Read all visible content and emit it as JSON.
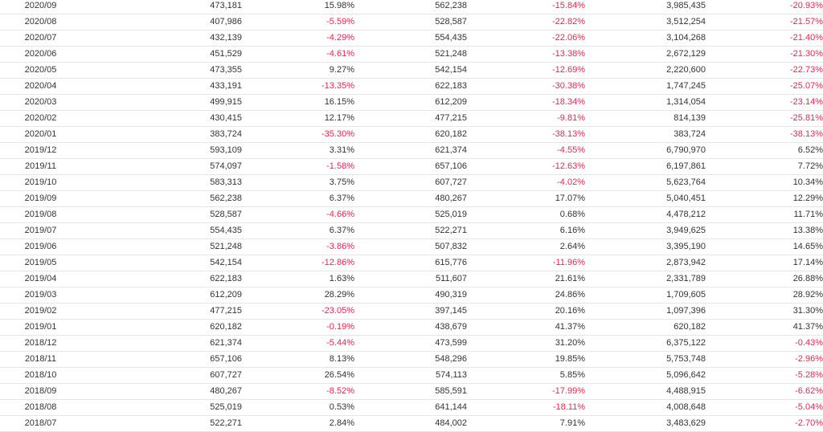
{
  "colors": {
    "negative": "#ff1a4b",
    "text": "#333333",
    "row_border": "#e6e6e6"
  },
  "rows": [
    [
      "2020/09",
      "473,181",
      "15.98%",
      "562,238",
      "-15.84%",
      "3,985,435",
      "-20.93%"
    ],
    [
      "2020/08",
      "407,986",
      "-5.59%",
      "528,587",
      "-22.82%",
      "3,512,254",
      "-21.57%"
    ],
    [
      "2020/07",
      "432,139",
      "-4.29%",
      "554,435",
      "-22.06%",
      "3,104,268",
      "-21.40%"
    ],
    [
      "2020/06",
      "451,529",
      "-4.61%",
      "521,248",
      "-13.38%",
      "2,672,129",
      "-21.30%"
    ],
    [
      "2020/05",
      "473,355",
      "9.27%",
      "542,154",
      "-12.69%",
      "2,220,600",
      "-22.73%"
    ],
    [
      "2020/04",
      "433,191",
      "-13.35%",
      "622,183",
      "-30.38%",
      "1,747,245",
      "-25.07%"
    ],
    [
      "2020/03",
      "499,915",
      "16.15%",
      "612,209",
      "-18.34%",
      "1,314,054",
      "-23.14%"
    ],
    [
      "2020/02",
      "430,415",
      "12.17%",
      "477,215",
      "-9.81%",
      "814,139",
      "-25.81%"
    ],
    [
      "2020/01",
      "383,724",
      "-35.30%",
      "620,182",
      "-38.13%",
      "383,724",
      "-38.13%"
    ],
    [
      "2019/12",
      "593,109",
      "3.31%",
      "621,374",
      "-4.55%",
      "6,790,970",
      "6.52%"
    ],
    [
      "2019/11",
      "574,097",
      "-1.58%",
      "657,106",
      "-12.63%",
      "6,197,861",
      "7.72%"
    ],
    [
      "2019/10",
      "583,313",
      "3.75%",
      "607,727",
      "-4.02%",
      "5,623,764",
      "10.34%"
    ],
    [
      "2019/09",
      "562,238",
      "6.37%",
      "480,267",
      "17.07%",
      "5,040,451",
      "12.29%"
    ],
    [
      "2019/08",
      "528,587",
      "-4.66%",
      "525,019",
      "0.68%",
      "4,478,212",
      "11.71%"
    ],
    [
      "2019/07",
      "554,435",
      "6.37%",
      "522,271",
      "6.16%",
      "3,949,625",
      "13.38%"
    ],
    [
      "2019/06",
      "521,248",
      "-3.86%",
      "507,832",
      "2.64%",
      "3,395,190",
      "14.65%"
    ],
    [
      "2019/05",
      "542,154",
      "-12.86%",
      "615,776",
      "-11.96%",
      "2,873,942",
      "17.14%"
    ],
    [
      "2019/04",
      "622,183",
      "1.63%",
      "511,607",
      "21.61%",
      "2,331,789",
      "26.88%"
    ],
    [
      "2019/03",
      "612,209",
      "28.29%",
      "490,319",
      "24.86%",
      "1,709,605",
      "28.92%"
    ],
    [
      "2019/02",
      "477,215",
      "-23.05%",
      "397,145",
      "20.16%",
      "1,097,396",
      "31.30%"
    ],
    [
      "2019/01",
      "620,182",
      "-0.19%",
      "438,679",
      "41.37%",
      "620,182",
      "41.37%"
    ],
    [
      "2018/12",
      "621,374",
      "-5.44%",
      "473,599",
      "31.20%",
      "6,375,122",
      "-0.43%"
    ],
    [
      "2018/11",
      "657,106",
      "8.13%",
      "548,296",
      "19.85%",
      "5,753,748",
      "-2.96%"
    ],
    [
      "2018/10",
      "607,727",
      "26.54%",
      "574,113",
      "5.85%",
      "5,096,642",
      "-5.28%"
    ],
    [
      "2018/09",
      "480,267",
      "-8.52%",
      "585,591",
      "-17.99%",
      "4,488,915",
      "-6.62%"
    ],
    [
      "2018/08",
      "525,019",
      "0.53%",
      "641,144",
      "-18.11%",
      "4,008,648",
      "-5.04%"
    ],
    [
      "2018/07",
      "522,271",
      "2.84%",
      "484,002",
      "7.91%",
      "3,483,629",
      "-2.70%"
    ]
  ]
}
